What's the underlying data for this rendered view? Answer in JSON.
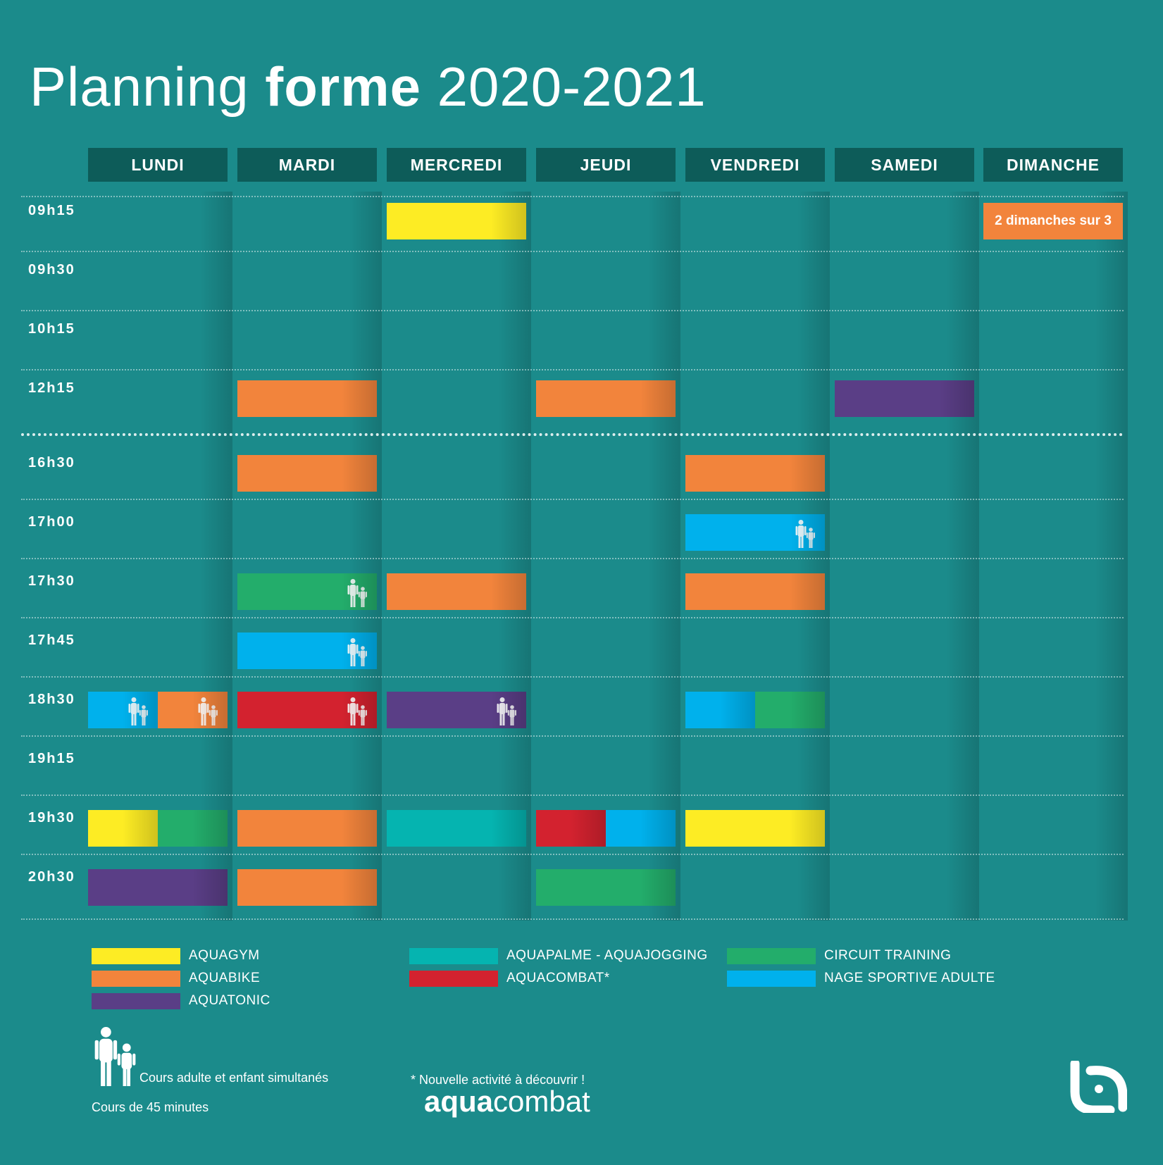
{
  "title": {
    "light_start": "Planning",
    "bold": "forme",
    "light_end": "2020-2021"
  },
  "days": [
    "LUNDI",
    "MARDI",
    "MERCREDI",
    "JEUDI",
    "VENDREDI",
    "SAMEDI",
    "DIMANCHE"
  ],
  "times": [
    "09h15",
    "09h30",
    "10h15",
    "12h15",
    "16h30",
    "17h00",
    "17h30",
    "17h45",
    "18h30",
    "19h15",
    "19h30",
    "20h30"
  ],
  "colors": {
    "background": "#1b8b8b",
    "header": "#0d5c59",
    "aquagym": "#fdec24",
    "aquabike": "#f2843c",
    "aquatonic": "#5a3e86",
    "aquapalme": "#05b4b0",
    "aquacombat": "#d3222f",
    "circuit": "#23ad6b",
    "nage": "#00b1ec"
  },
  "schedule": [
    {
      "day": 2,
      "time": 0,
      "activity": "aquagym",
      "family": false,
      "split": []
    },
    {
      "day": 1,
      "time": 3,
      "activity": "aquabike",
      "family": false
    },
    {
      "day": 3,
      "time": 3,
      "activity": "aquabike",
      "family": false
    },
    {
      "day": 5,
      "time": 3,
      "activity": "aquatonic",
      "family": false
    },
    {
      "day": 1,
      "time": 4,
      "activity": "aquabike",
      "family": false
    },
    {
      "day": 4,
      "time": 4,
      "activity": "aquabike",
      "family": false
    },
    {
      "day": 4,
      "time": 5,
      "activity": "nage",
      "family": true
    },
    {
      "day": 1,
      "time": 6,
      "activity": "circuit",
      "family": true
    },
    {
      "day": 2,
      "time": 6,
      "activity": "aquabike",
      "family": false
    },
    {
      "day": 4,
      "time": 6,
      "activity": "aquabike",
      "family": false
    },
    {
      "day": 1,
      "time": 7,
      "activity": "nage",
      "family": true
    },
    {
      "day": 0,
      "time": 8,
      "split": [
        "nage",
        "aquabike"
      ],
      "family": true
    },
    {
      "day": 1,
      "time": 8,
      "activity": "aquacombat",
      "family": true
    },
    {
      "day": 2,
      "time": 8,
      "activity": "aquatonic",
      "family": true
    },
    {
      "day": 4,
      "time": 8,
      "split": [
        "nage",
        "circuit"
      ],
      "family": false
    },
    {
      "day": 0,
      "time": 10,
      "split": [
        "aquagym",
        "circuit"
      ],
      "family": false
    },
    {
      "day": 1,
      "time": 10,
      "activity": "aquabike",
      "family": false
    },
    {
      "day": 2,
      "time": 10,
      "activity": "aquapalme",
      "family": false
    },
    {
      "day": 3,
      "time": 10,
      "split": [
        "aquacombat",
        "nage"
      ],
      "family": false
    },
    {
      "day": 4,
      "time": 10,
      "activity": "aquagym",
      "family": false
    },
    {
      "day": 0,
      "time": 11,
      "activity": "aquatonic",
      "family": false
    },
    {
      "day": 1,
      "time": 11,
      "activity": "aquabike",
      "family": false
    },
    {
      "day": 3,
      "time": 11,
      "activity": "circuit",
      "family": false
    }
  ],
  "sunday_note": "2 dimanches sur 3",
  "legend": [
    {
      "key": "aquagym",
      "label": "AQUAGYM"
    },
    {
      "key": "aquabike",
      "label": "AQUABIKE"
    },
    {
      "key": "aquatonic",
      "label": "AQUATONIC"
    },
    {
      "key": "aquapalme",
      "label": "AQUAPALME - AQUAJOGGING"
    },
    {
      "key": "aquacombat",
      "label": "AQUACOMBAT*"
    },
    {
      "key": "circuit",
      "label": "CIRCUIT TRAINING"
    },
    {
      "key": "nage",
      "label": "NAGE SPORTIVE ADULTE"
    }
  ],
  "footer": {
    "family_note": "Cours adulte et enfant simultanés",
    "duration_note": "Cours de 45 minutes",
    "new_activity_note": "* Nouvelle activité à découvrir !",
    "brand_bold": "aqua",
    "brand_light": "combat"
  }
}
